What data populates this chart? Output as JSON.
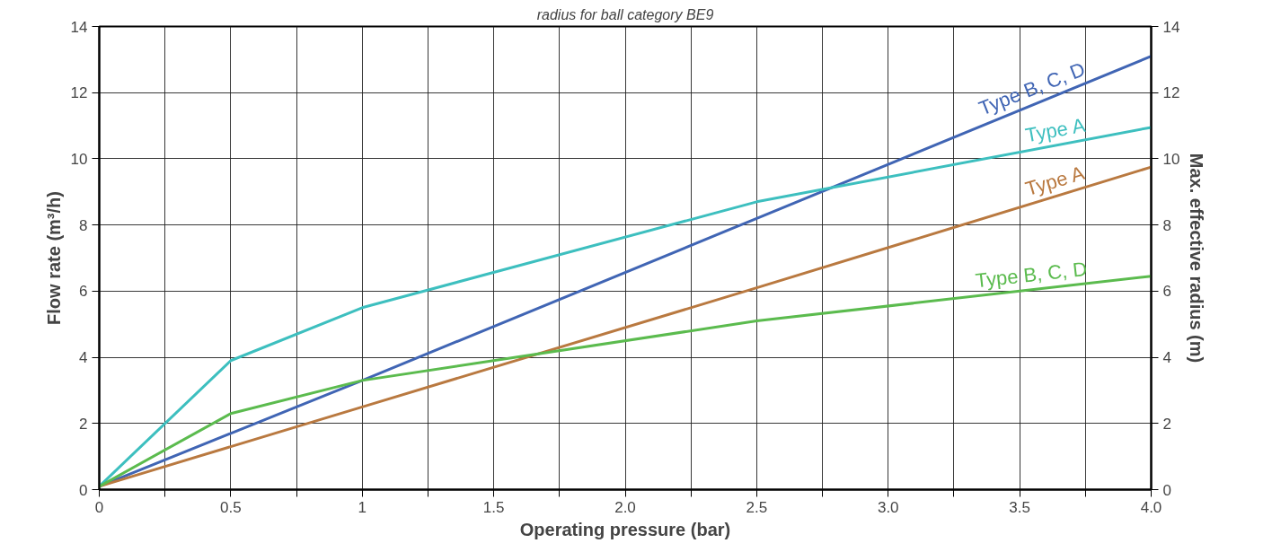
{
  "chart_data": {
    "type": "line",
    "title": "radius for ball category BE9",
    "xlabel": "Operating pressure (bar)",
    "ylabel": "Flow rate (m³/h)",
    "y2label": "Max. effective radius (m)",
    "x": [
      0,
      0.5,
      1,
      2.5,
      4
    ],
    "series": [
      {
        "name": "Type B, C, D",
        "color": "#4065b4",
        "values": [
          0.1,
          1.7,
          3.3,
          8.2,
          13.1
        ]
      },
      {
        "name": "Type A",
        "color": "#3dbfbf",
        "values": [
          0.1,
          3.9,
          5.5,
          8.7,
          10.95
        ]
      },
      {
        "name": "Type A",
        "color": "#b97940",
        "values": [
          0.1,
          1.3,
          2.5,
          6.1,
          9.75
        ]
      },
      {
        "name": "Type B, C, D",
        "color": "#5bbb4e",
        "values": [
          0.1,
          2.3,
          3.3,
          5.1,
          6.45
        ]
      }
    ],
    "xlim": [
      0,
      4
    ],
    "ylim": [
      0,
      14
    ],
    "y2lim": [
      0,
      14
    ],
    "xticks": [
      0,
      {
        "value": 0.25,
        "label": null
      },
      0.5,
      {
        "value": 0.75,
        "label": null
      },
      1,
      {
        "value": 1.25,
        "label": null
      },
      1.5,
      {
        "value": 1.75,
        "label": null
      },
      {
        "value": 2,
        "label": "2.0"
      },
      {
        "value": 2.25,
        "label": null
      },
      2.5,
      {
        "value": 2.75,
        "label": null
      },
      {
        "value": 3,
        "label": "3.0"
      },
      {
        "value": 3.25,
        "label": null
      },
      3.5,
      {
        "value": 3.75,
        "label": null
      },
      {
        "value": 4,
        "label": "4.0"
      }
    ],
    "yticks": [
      0,
      2,
      4,
      6,
      8,
      10,
      12,
      14
    ],
    "y2ticks": [
      0,
      2,
      4,
      6,
      8,
      10,
      12,
      14
    ],
    "grid": true,
    "marker": "none",
    "line_style": "solid"
  }
}
